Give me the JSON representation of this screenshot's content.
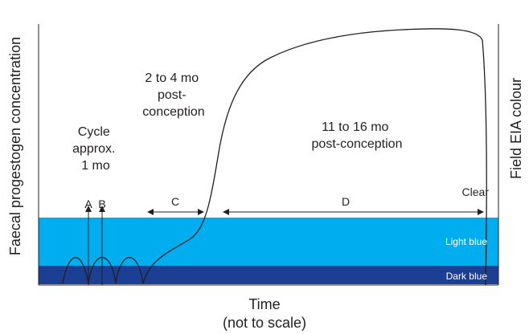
{
  "chart_data": {
    "type": "line",
    "title": "",
    "xlabel": "Time",
    "xlabel_note": "(not to scale)",
    "ylabel_left": "Faecal progestogen concentration",
    "ylabel_right": "Field EIA colour",
    "grid": false,
    "legend": "none",
    "colour_bands": [
      {
        "label": "Clear",
        "color": "#ffffff"
      },
      {
        "label": "Light blue",
        "color": "#00aeef"
      },
      {
        "label": "Dark blue",
        "color": "#1b3f94"
      }
    ],
    "phase_markers": [
      {
        "label": "A",
        "type": "arrow-up"
      },
      {
        "label": "B",
        "type": "arrow-up"
      },
      {
        "label": "C",
        "type": "span"
      },
      {
        "label": "D",
        "type": "span"
      }
    ],
    "annotations": [
      {
        "lines": [
          "Cycle",
          "approx.",
          "1 mo"
        ]
      },
      {
        "lines": [
          "2 to 4 mo",
          "post-",
          "conception"
        ]
      },
      {
        "lines": [
          "11 to 16 mo",
          "post-conception"
        ]
      }
    ],
    "series": [
      {
        "description_free": true,
        "shape": "schematic",
        "cycles": 3,
        "relative_levels": {
          "baseline": 0,
          "cycle_peak": 0.17,
          "early_pregnancy": 0.5,
          "late_pregnancy": 1.0
        }
      }
    ],
    "colors": {
      "line": "#231f20",
      "light_blue": "#00aeef",
      "dark_blue": "#1b3f94",
      "band_text": "#ffffff"
    }
  }
}
